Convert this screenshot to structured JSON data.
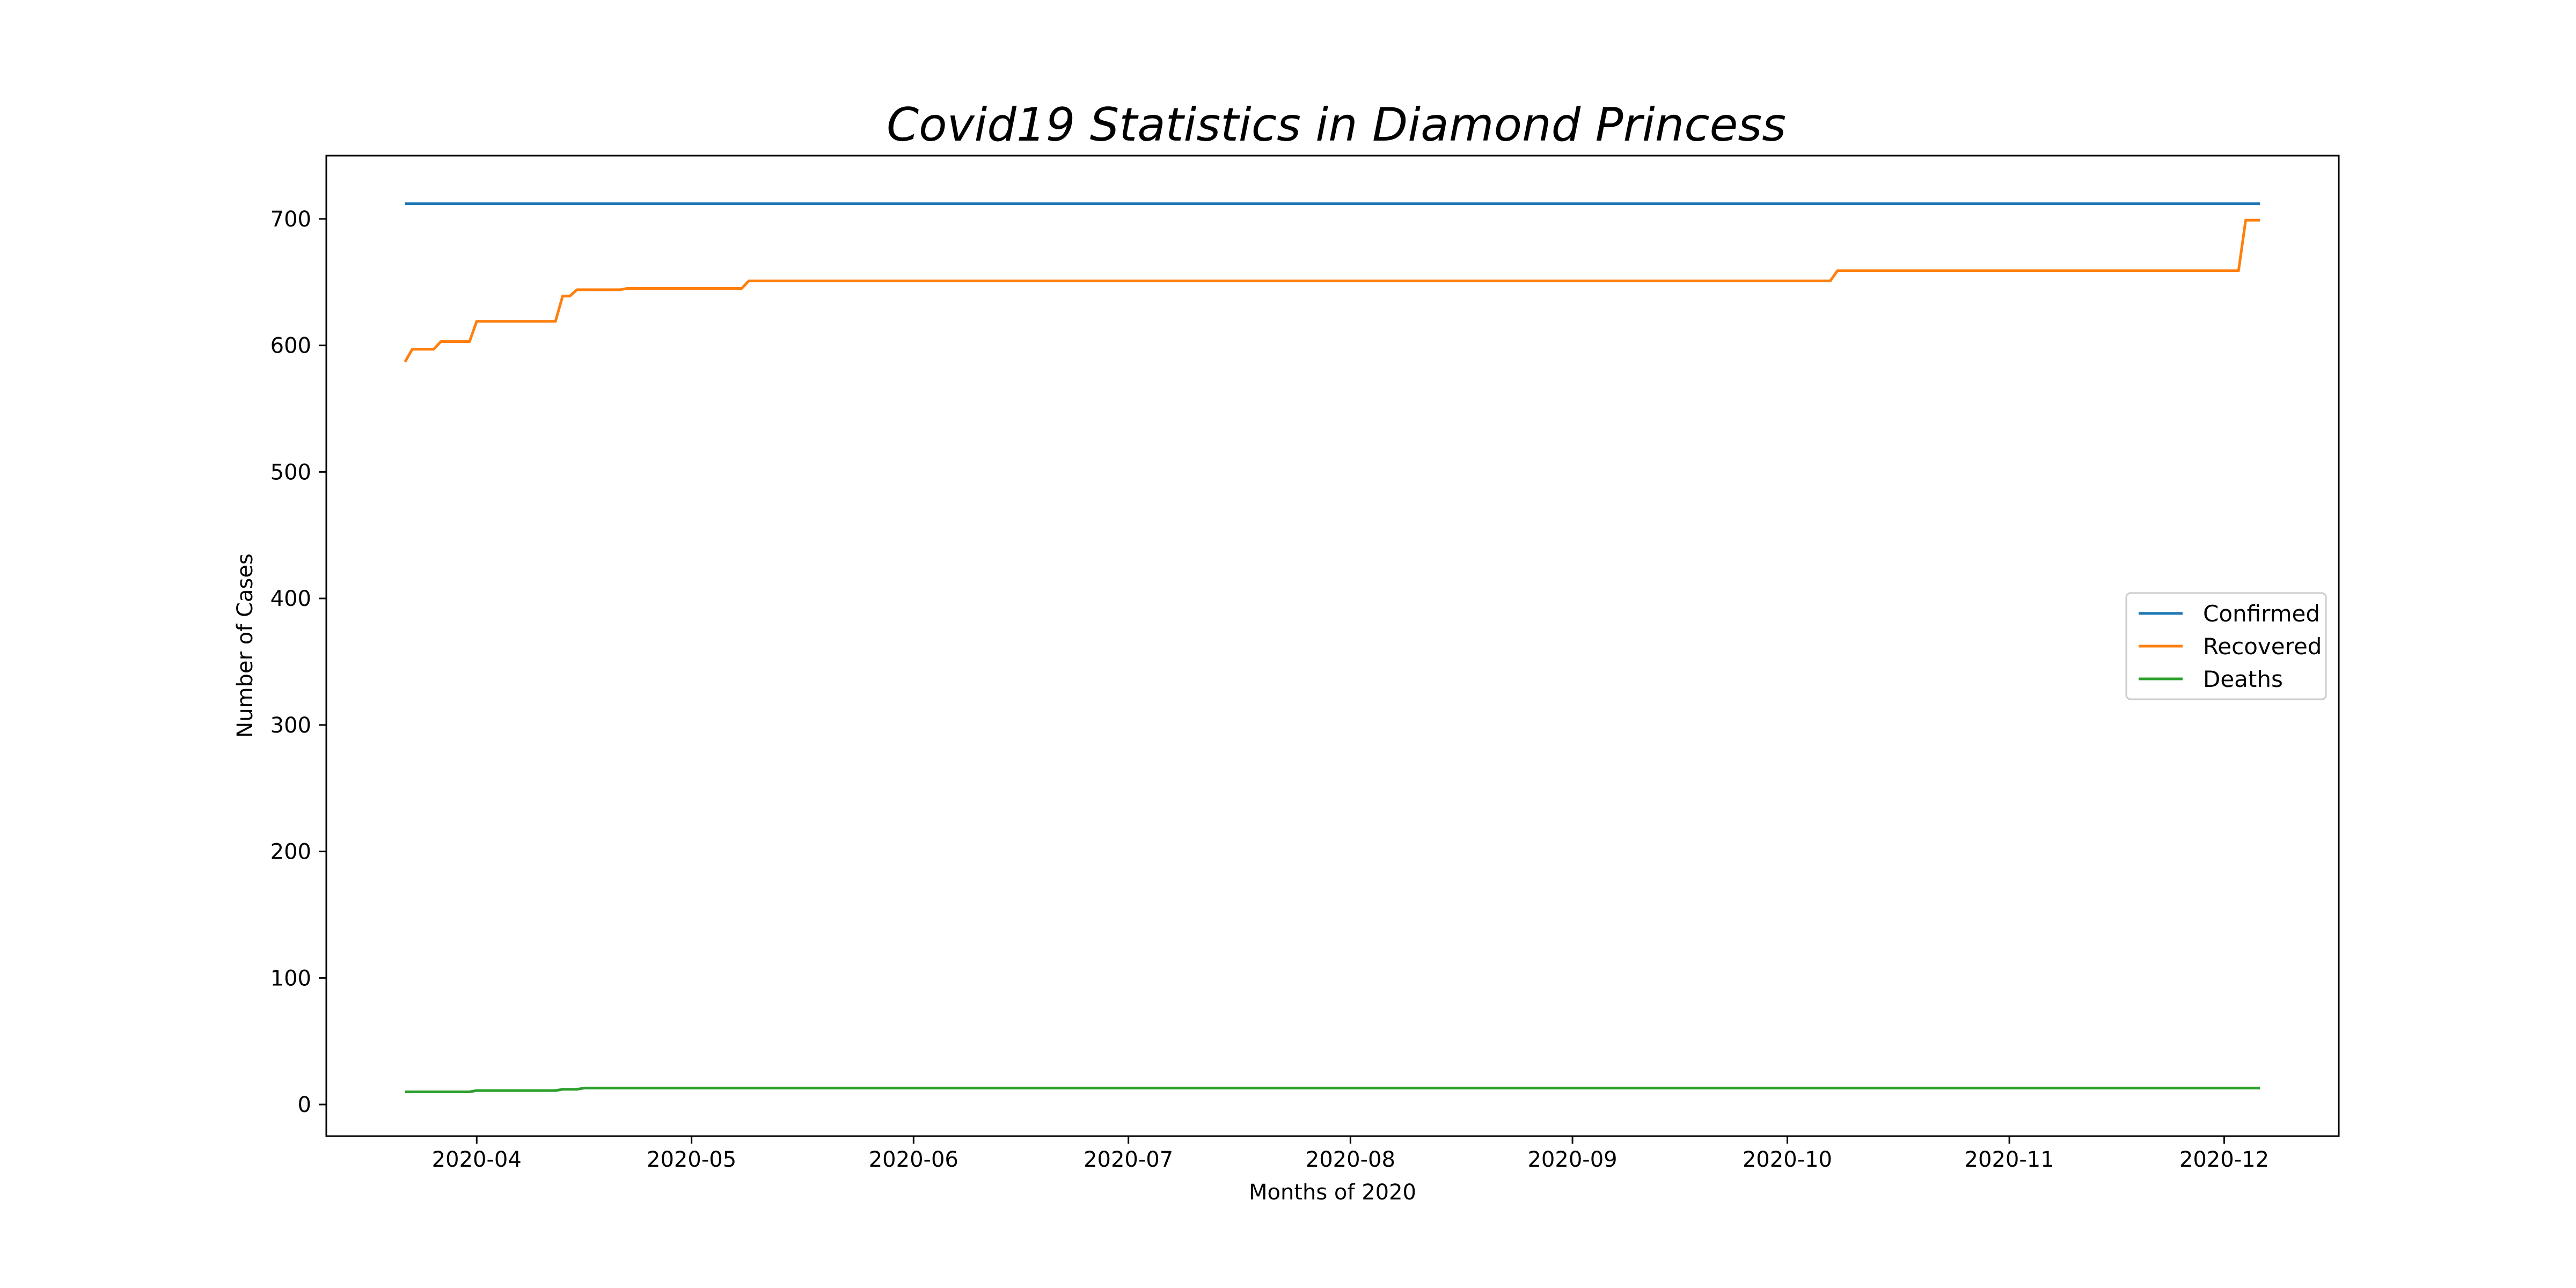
{
  "chart_data": {
    "type": "line",
    "title": "Covid19 Statistics in Diamond Princess",
    "xlabel": "Months of 2020",
    "ylabel": "Number of Cases",
    "xlim": [
      "2020-03-11",
      "2020-12-17"
    ],
    "ylim": [
      -25,
      750
    ],
    "grid": false,
    "legend": "center-right",
    "x_ticks": [
      "2020-04-01",
      "2020-05-01",
      "2020-06-01",
      "2020-07-01",
      "2020-08-01",
      "2020-09-01",
      "2020-10-01",
      "2020-11-01",
      "2020-12-01"
    ],
    "x_tick_labels": [
      "2020-04",
      "2020-05",
      "2020-06",
      "2020-07",
      "2020-08",
      "2020-09",
      "2020-10",
      "2020-11",
      "2020-12"
    ],
    "y_ticks": [
      0,
      100,
      200,
      300,
      400,
      500,
      600,
      700
    ],
    "y_tick_labels": [
      "0",
      "100",
      "200",
      "300",
      "400",
      "500",
      "600",
      "700"
    ],
    "series": [
      {
        "name": "Confirmed",
        "color": "#1f77b4",
        "points": [
          [
            "2020-03-22",
            712
          ],
          [
            "2020-12-06",
            712
          ]
        ]
      },
      {
        "name": "Recovered",
        "color": "#ff7f0e",
        "points": [
          [
            "2020-03-22",
            587
          ],
          [
            "2020-03-23",
            597
          ],
          [
            "2020-03-25",
            597
          ],
          [
            "2020-03-26",
            597
          ],
          [
            "2020-03-27",
            603
          ],
          [
            "2020-03-31",
            603
          ],
          [
            "2020-04-01",
            619
          ],
          [
            "2020-04-12",
            619
          ],
          [
            "2020-04-13",
            639
          ],
          [
            "2020-04-14",
            639
          ],
          [
            "2020-04-15",
            644
          ],
          [
            "2020-04-21",
            644
          ],
          [
            "2020-04-22",
            645
          ],
          [
            "2020-05-08",
            645
          ],
          [
            "2020-05-09",
            651
          ],
          [
            "2020-10-07",
            651
          ],
          [
            "2020-10-08",
            659
          ],
          [
            "2020-12-03",
            659
          ],
          [
            "2020-12-04",
            699
          ],
          [
            "2020-12-06",
            699
          ]
        ]
      },
      {
        "name": "Deaths",
        "color": "#2ca02c",
        "points": [
          [
            "2020-03-22",
            10
          ],
          [
            "2020-03-31",
            10
          ],
          [
            "2020-04-01",
            11
          ],
          [
            "2020-04-12",
            11
          ],
          [
            "2020-04-13",
            12
          ],
          [
            "2020-04-15",
            12
          ],
          [
            "2020-04-16",
            13
          ],
          [
            "2020-12-06",
            13
          ]
        ]
      }
    ]
  }
}
